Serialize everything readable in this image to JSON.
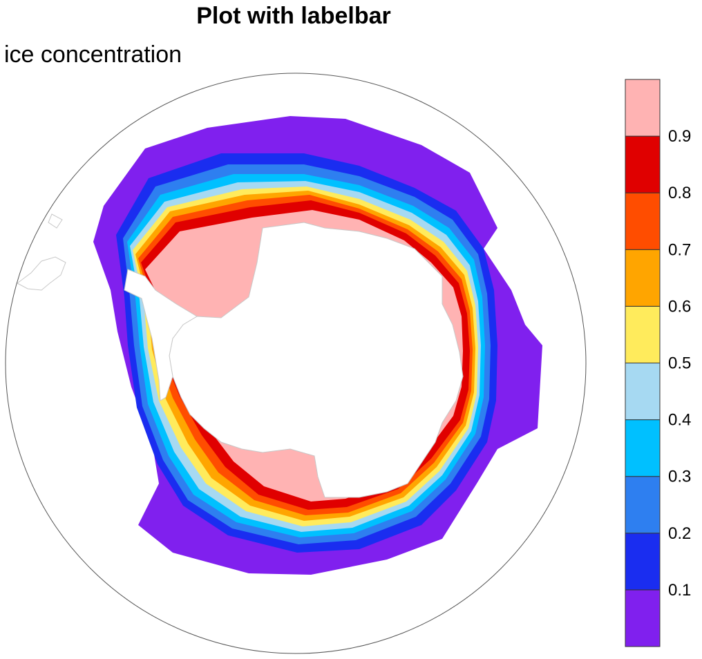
{
  "title": "Plot with labelbar",
  "subtitle": "ice concentration",
  "map": {
    "projection": "south polar stereographic",
    "field": "ice concentration"
  },
  "labelbar": {
    "orientation": "vertical",
    "placement": "right",
    "levels": [
      "0.1",
      "0.2",
      "0.3",
      "0.4",
      "0.5",
      "0.6",
      "0.7",
      "0.8",
      "0.9"
    ],
    "colors": [
      "#8020ee",
      "#1a2df0",
      "#2e7ff0",
      "#00c0ff",
      "#a6d9f2",
      "#ffeb5c",
      "#ffa500",
      "#ff4d00",
      "#e00000",
      "#ffb3b3"
    ]
  },
  "colors": {
    "land": "#ffffff",
    "coastline": "#c8c8c8",
    "map_border": "#555555"
  }
}
